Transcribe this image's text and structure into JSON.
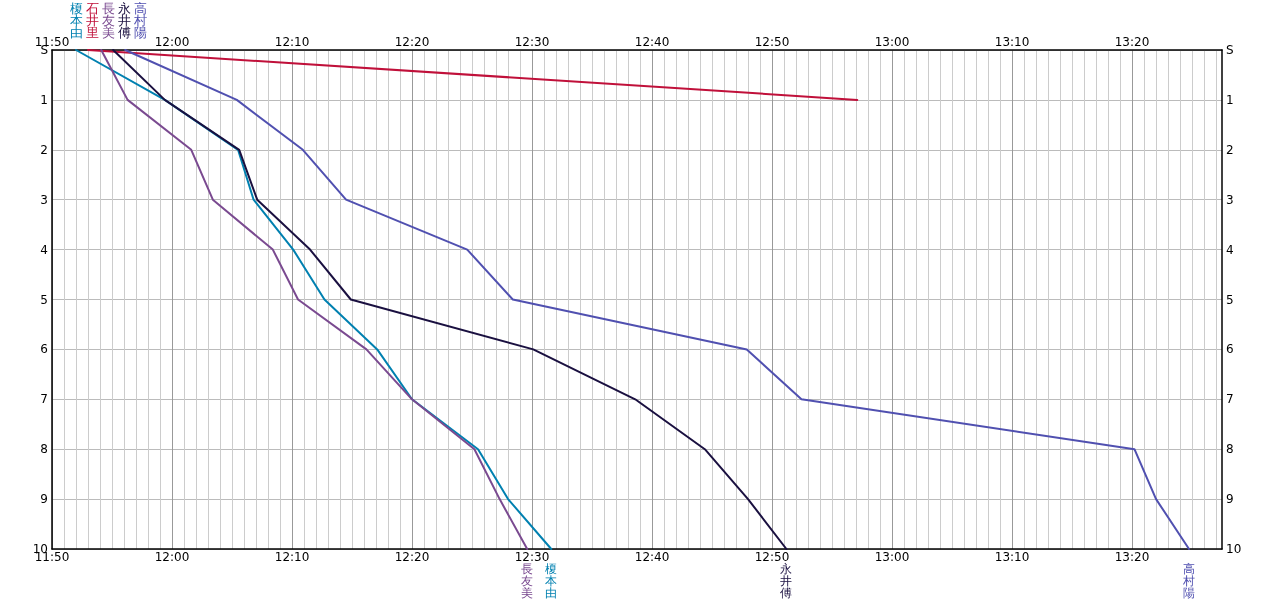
{
  "chart_data": {
    "type": "line",
    "xlim": [
      11.8333,
      13.4583
    ],
    "xticks": [
      {
        "value": 11.8333,
        "label": "11:50"
      },
      {
        "value": 12,
        "label": "12:00"
      },
      {
        "value": 12.1667,
        "label": "12:10"
      },
      {
        "value": 12.3333,
        "label": "12:20"
      },
      {
        "value": 12.5,
        "label": "12:30"
      },
      {
        "value": 12.6667,
        "label": "12:40"
      },
      {
        "value": 12.8333,
        "label": "12:50"
      },
      {
        "value": 13,
        "label": "13:00"
      },
      {
        "value": 13.1667,
        "label": "13:10"
      },
      {
        "value": 13.3333,
        "label": "13:20"
      }
    ],
    "x2lim": [
      11.8333,
      13.4583
    ],
    "x2ticks": [
      {
        "value": 11.8333,
        "label": "11:50"
      },
      {
        "value": 12,
        "label": "12:00"
      },
      {
        "value": 12.1667,
        "label": "12:10"
      },
      {
        "value": 12.3333,
        "label": "12:20"
      },
      {
        "value": 12.5,
        "label": "12:30"
      },
      {
        "value": 12.6667,
        "label": "12:40"
      },
      {
        "value": 12.8333,
        "label": "12:50"
      },
      {
        "value": 13,
        "label": "13:00"
      },
      {
        "value": 13.1667,
        "label": "13:10"
      },
      {
        "value": 13.3333,
        "label": "13:20"
      }
    ],
    "ylim": [
      10,
      0
    ],
    "yticks": [
      {
        "value": 0,
        "label": "S"
      },
      1,
      2,
      3,
      4,
      5,
      6,
      7,
      8,
      9,
      10
    ],
    "y2lim": [
      10,
      0
    ],
    "y2ticks": [
      {
        "value": 0,
        "label": "S"
      },
      1,
      2,
      3,
      4,
      5,
      6,
      7,
      8,
      9,
      10
    ],
    "grid": true,
    "legend": "top left",
    "marker": "none",
    "line_style": "solid",
    "series": [
      {
        "name": "榎本由",
        "color": "#0080b0",
        "x": [
          11.8667,
          11.99,
          12.0917,
          12.1133,
          12.1683,
          12.2117,
          12.285,
          12.3333,
          12.425,
          12.4667,
          12.5267
        ],
        "values": [
          0,
          1,
          2,
          3,
          4,
          5,
          6,
          7,
          8,
          9,
          10
        ]
      },
      {
        "name": "石井里",
        "color": "#c0103a",
        "x": [
          11.8833,
          12.9517
        ],
        "values": [
          0,
          1
        ]
      },
      {
        "name": "長友美",
        "color": "#7a4a90",
        "x": [
          11.9017,
          11.9383,
          12.0267,
          12.0567,
          12.14,
          12.175,
          12.27,
          12.3333,
          12.42,
          12.455,
          12.4933
        ],
        "values": [
          0,
          1,
          2,
          3,
          4,
          5,
          6,
          7,
          8,
          9,
          10
        ]
      },
      {
        "name": "永井傅",
        "color": "#1a1040",
        "x": [
          11.9183,
          11.99,
          12.0933,
          12.1183,
          12.1917,
          12.2483,
          12.5017,
          12.6433,
          12.74,
          12.8,
          12.8533
        ],
        "values": [
          0,
          1,
          2,
          3,
          4,
          5,
          6,
          7,
          8,
          9,
          10
        ]
      },
      {
        "name": "高村陽",
        "color": "#5050b0",
        "x": [
          11.935,
          12.09,
          12.1817,
          12.2417,
          12.41,
          12.4733,
          12.7983,
          12.8742,
          13.3367,
          13.3667,
          13.4125
        ],
        "values": [
          0,
          1,
          2,
          3,
          4,
          5,
          6,
          7,
          8,
          9,
          10
        ]
      }
    ]
  }
}
